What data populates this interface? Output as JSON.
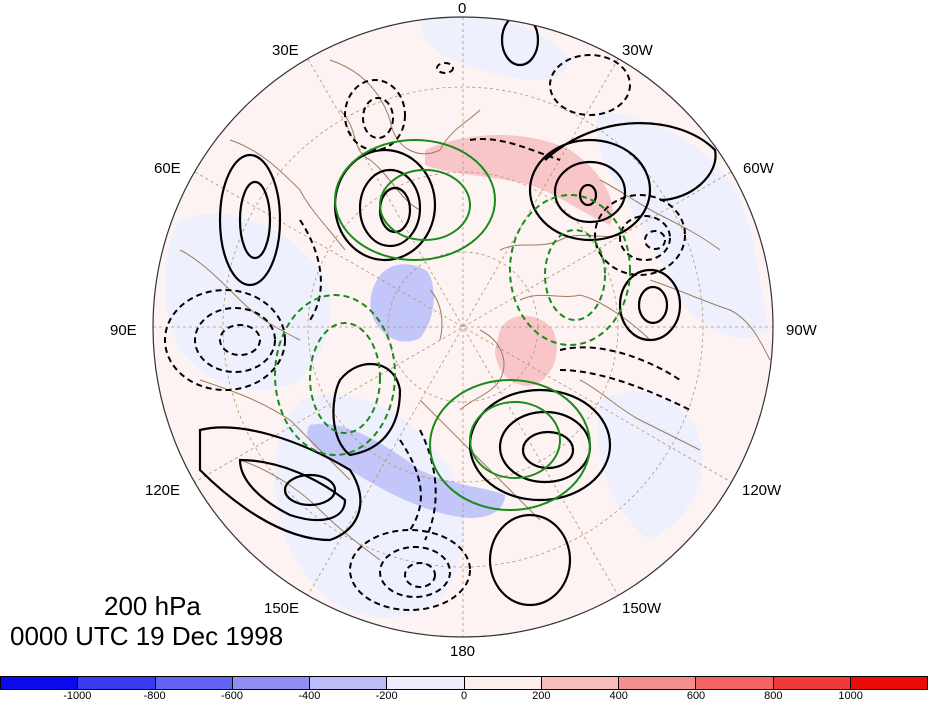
{
  "map": {
    "level_label": "200 hPa",
    "time_label": "0000 UTC 19 Dec 1998",
    "projection": "north polar stereographic",
    "longitude_labels": [
      "0",
      "30W",
      "60W",
      "90W",
      "120W",
      "150W",
      "180",
      "150E",
      "120E",
      "90E",
      "60E",
      "30E"
    ]
  },
  "colorbar": {
    "colors": [
      "#0a0aec",
      "#3a3af0",
      "#6464f2",
      "#8e8ef4",
      "#bcbcf8",
      "#ececfd",
      "#fdeeee",
      "#f8bcbc",
      "#f48e8e",
      "#f26464",
      "#f03a3a",
      "#ec0a0a"
    ],
    "tick_labels": [
      "-1000",
      "-800",
      "-600",
      "-400",
      "-200",
      "0",
      "200",
      "400",
      "600",
      "800",
      "1000"
    ]
  },
  "legend_colors": {
    "land_outline": "#9c7d5e",
    "grid": "#b4966e",
    "positive_contour": "#000000",
    "green_contour": "#1a8a1a"
  }
}
